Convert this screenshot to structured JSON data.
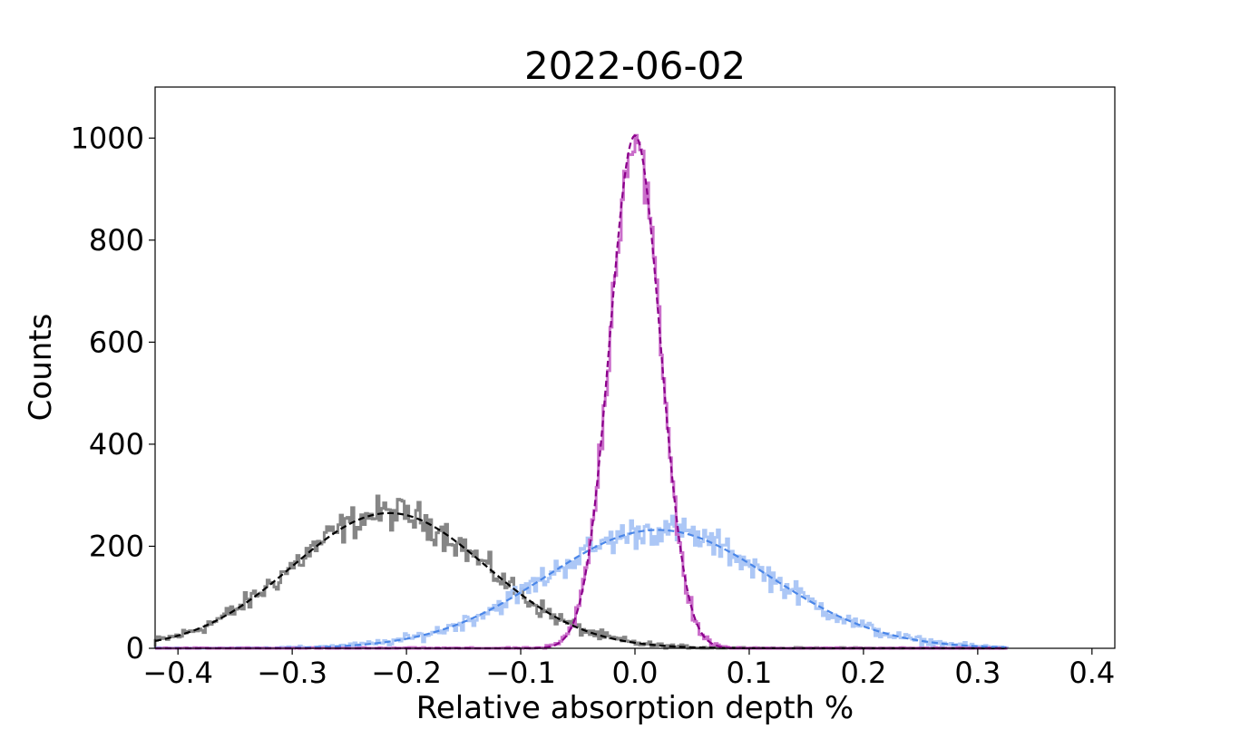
{
  "chart_data": {
    "type": "histogram",
    "title": "2022-06-02",
    "xlabel": "Relative absorption depth %",
    "ylabel": "Counts",
    "xlim": [
      -0.42,
      0.42
    ],
    "ylim": [
      0,
      1100
    ],
    "xticks": [
      -0.4,
      -0.3,
      -0.2,
      -0.1,
      0.0,
      0.1,
      0.2,
      0.3,
      0.4
    ],
    "xtick_labels": [
      "−0.4",
      "−0.3",
      "−0.2",
      "−0.1",
      "0.0",
      "0.1",
      "0.2",
      "0.3",
      "0.4"
    ],
    "yticks": [
      0,
      200,
      400,
      600,
      800,
      1000
    ],
    "ytick_labels": [
      "0",
      "200",
      "400",
      "600",
      "800",
      "1000"
    ],
    "grid": false,
    "legend": "none",
    "histogram_range": [
      -0.42,
      0.325
    ],
    "bin_width": 0.002,
    "series": [
      {
        "histogram_color": "#808080",
        "fit_color": "#000000",
        "fit": {
          "amplitude": 265,
          "mean": -0.215,
          "sigma": 0.085
        }
      },
      {
        "histogram_color": "#a8c4f5",
        "fit_color": "#4a86e8",
        "fit": {
          "amplitude": 232,
          "mean": 0.02,
          "sigma": 0.098
        }
      },
      {
        "histogram_color": "#c766c7",
        "fit_color": "#8b008b",
        "fit": {
          "amplitude": 1005,
          "mean": 0.0,
          "sigma": 0.022
        }
      }
    ]
  }
}
